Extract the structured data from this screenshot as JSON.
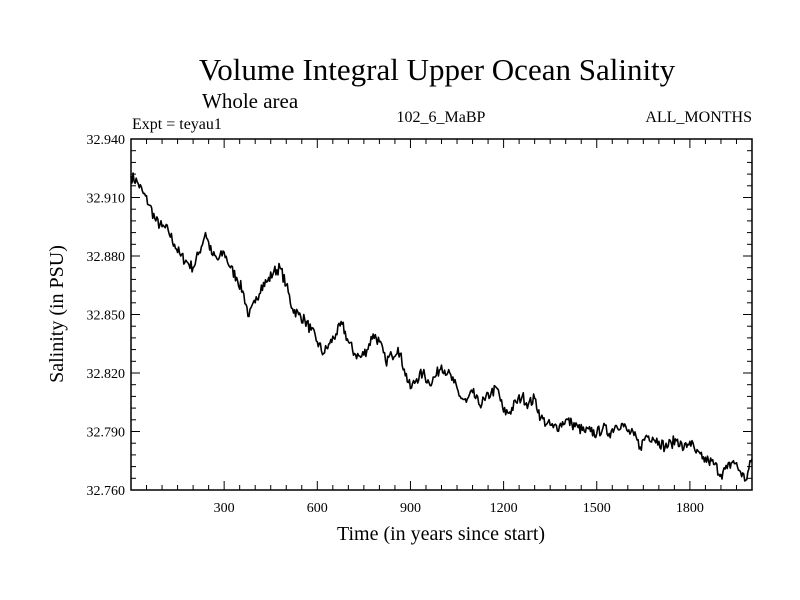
{
  "chart_data": {
    "type": "line",
    "title": "Volume Integral Upper Ocean Salinity",
    "subtitle": "Whole area",
    "experiment_label": "Expt = teyau1",
    "run_label": "102_6_MaBP",
    "period_label": "ALL_MONTHS",
    "xlabel": "Time (in years since start)",
    "ylabel": "Salinity (in PSU)",
    "xlim": [
      0,
      2000
    ],
    "ylim": [
      32.76,
      32.94
    ],
    "x_ticks": [
      300,
      600,
      900,
      1200,
      1500,
      1800
    ],
    "x_tick_labels": [
      "300",
      "600",
      "900",
      "1200",
      "1500",
      "1800"
    ],
    "y_ticks": [
      32.76,
      32.79,
      32.82,
      32.85,
      32.88,
      32.91,
      32.94
    ],
    "y_tick_labels": [
      "32.760",
      "32.790",
      "32.820",
      "32.850",
      "32.880",
      "32.910",
      "32.940"
    ],
    "grid": false,
    "series": [
      {
        "name": "salinity",
        "color": "#000000",
        "x": [
          0,
          20,
          40,
          60,
          80,
          100,
          120,
          140,
          160,
          180,
          200,
          220,
          240,
          260,
          280,
          300,
          320,
          340,
          360,
          380,
          400,
          420,
          440,
          460,
          480,
          500,
          520,
          540,
          560,
          580,
          600,
          620,
          640,
          660,
          680,
          700,
          720,
          740,
          760,
          780,
          800,
          820,
          840,
          860,
          880,
          900,
          920,
          940,
          960,
          980,
          1000,
          1020,
          1040,
          1060,
          1080,
          1100,
          1120,
          1140,
          1160,
          1180,
          1200,
          1220,
          1240,
          1260,
          1280,
          1300,
          1320,
          1340,
          1360,
          1380,
          1400,
          1420,
          1440,
          1460,
          1480,
          1500,
          1520,
          1540,
          1560,
          1580,
          1600,
          1620,
          1640,
          1660,
          1680,
          1700,
          1720,
          1740,
          1760,
          1780,
          1800,
          1820,
          1840,
          1860,
          1880,
          1900,
          1920,
          1940,
          1960,
          1980,
          2000
        ],
        "values": [
          32.921,
          32.918,
          32.912,
          32.906,
          32.898,
          32.895,
          32.893,
          32.886,
          32.88,
          32.877,
          32.874,
          32.882,
          32.892,
          32.881,
          32.878,
          32.882,
          32.874,
          32.869,
          32.862,
          32.849,
          32.856,
          32.865,
          32.867,
          32.872,
          32.874,
          32.865,
          32.853,
          32.85,
          32.847,
          32.842,
          32.836,
          32.83,
          32.835,
          32.84,
          32.845,
          32.836,
          32.83,
          32.828,
          32.832,
          32.84,
          32.836,
          32.826,
          32.829,
          32.833,
          32.822,
          32.812,
          32.817,
          32.82,
          32.815,
          32.818,
          32.824,
          32.82,
          32.815,
          32.808,
          32.805,
          32.81,
          32.804,
          32.806,
          32.81,
          32.812,
          32.8,
          32.8,
          32.805,
          32.808,
          32.804,
          32.807,
          32.797,
          32.794,
          32.792,
          32.793,
          32.796,
          32.794,
          32.792,
          32.79,
          32.79,
          32.789,
          32.792,
          32.789,
          32.793,
          32.794,
          32.79,
          32.788,
          32.782,
          32.788,
          32.787,
          32.785,
          32.782,
          32.784,
          32.786,
          32.781,
          32.785,
          32.779,
          32.776,
          32.775,
          32.773,
          32.768,
          32.771,
          32.775,
          32.77,
          32.765,
          32.776
        ]
      }
    ]
  }
}
